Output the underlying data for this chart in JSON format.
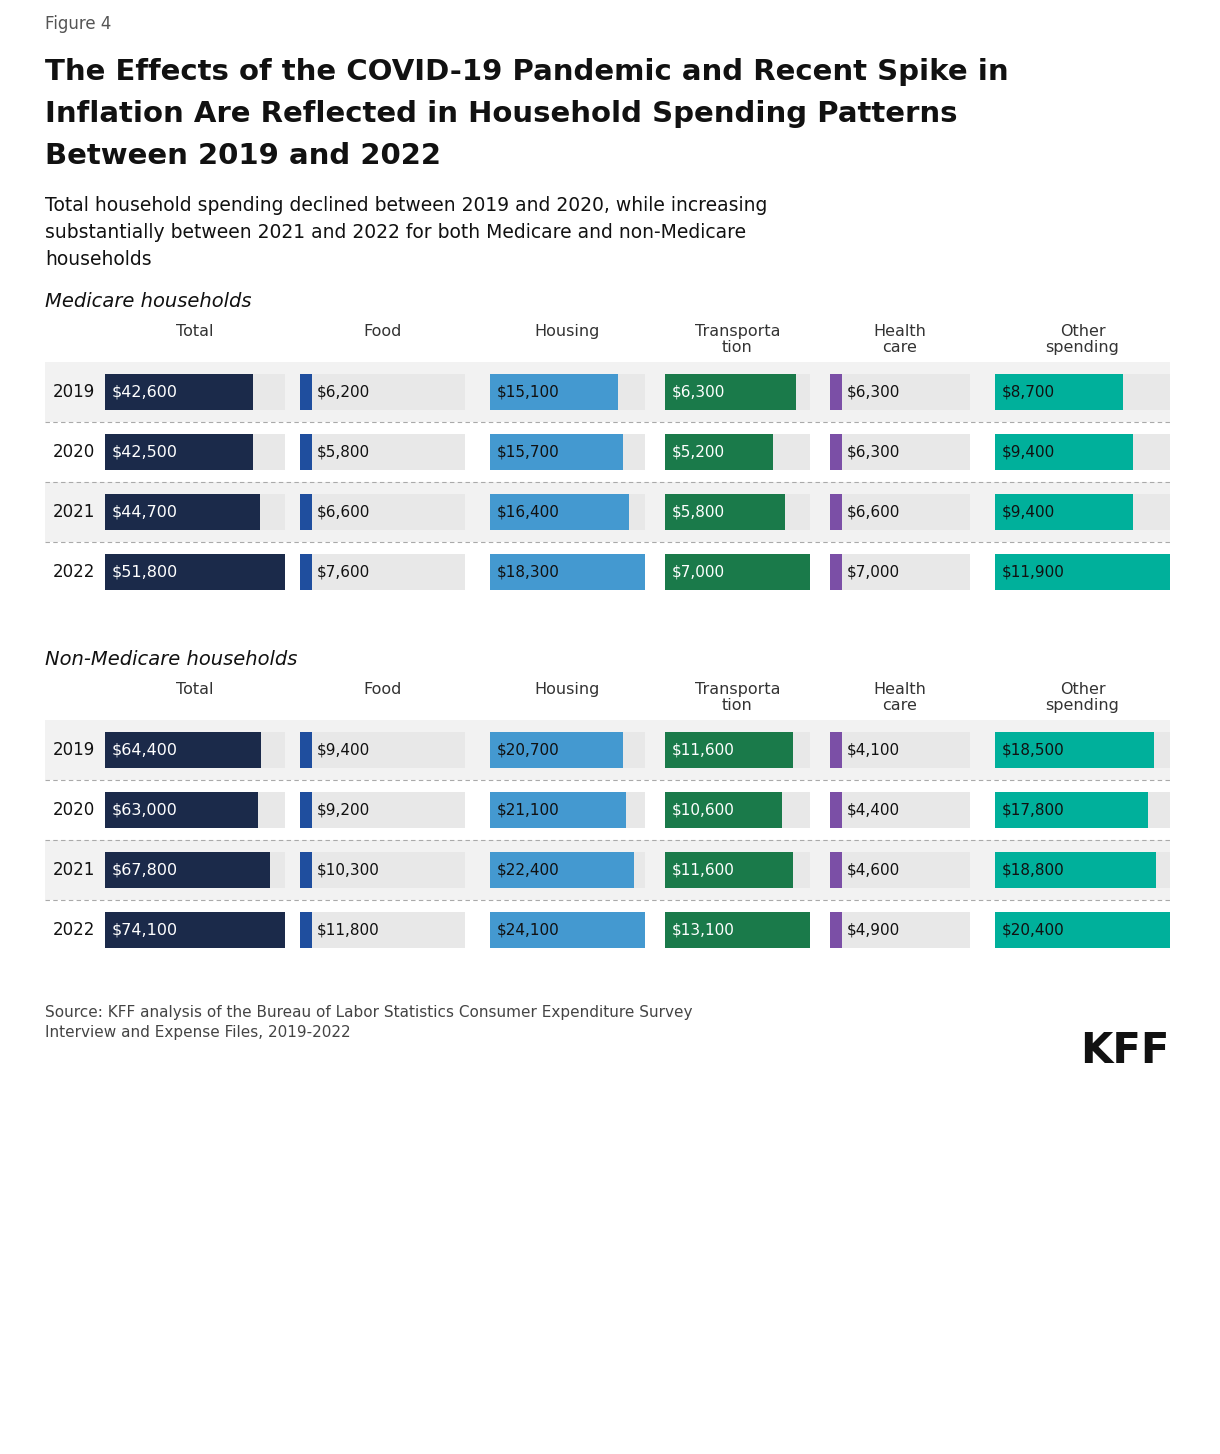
{
  "figure_label": "Figure 4",
  "title_line1": "The Effects of the COVID-19 Pandemic and Recent Spike in",
  "title_line2": "Inflation Are Reflected in Household Spending Patterns",
  "title_line3": "Between 2019 and 2022",
  "subtitle_line1": "Total household spending declined between 2019 and 2020, while increasing",
  "subtitle_line2": "substantially between 2021 and 2022 for both Medicare and non-Medicare",
  "subtitle_line3": "households",
  "source_line1": "Source: KFF analysis of the Bureau of Labor Statistics Consumer Expenditure Survey",
  "source_line2": "Interview and Expense Files, 2019-2022",
  "section1_title": "Medicare households",
  "section2_title": "Non-Medicare households",
  "col_headers_line1": [
    "Total",
    "Food",
    "Housing",
    "Transporta",
    "Health",
    "Other"
  ],
  "col_headers_line2": [
    "",
    "",
    "",
    "tion",
    "care",
    "spending"
  ],
  "years": [
    "2019",
    "2020",
    "2021",
    "2022"
  ],
  "medicare": {
    "total": [
      42600,
      42500,
      44700,
      51800
    ],
    "food": [
      6200,
      5800,
      6600,
      7600
    ],
    "housing": [
      15100,
      15700,
      16400,
      18300
    ],
    "transport": [
      6300,
      5200,
      5800,
      7000
    ],
    "health": [
      6300,
      6300,
      6600,
      7000
    ],
    "other": [
      8700,
      9400,
      9400,
      11900
    ]
  },
  "non_medicare": {
    "total": [
      64400,
      63000,
      67800,
      74100
    ],
    "food": [
      9400,
      9200,
      10300,
      11800
    ],
    "housing": [
      20700,
      21100,
      22400,
      24100
    ],
    "transport": [
      11600,
      10600,
      11600,
      13100
    ],
    "health": [
      4100,
      4400,
      4600,
      4900
    ],
    "other": [
      18500,
      17800,
      18800,
      20400
    ]
  },
  "colors": {
    "total_bg": "#1b2a4a",
    "total_text": "#ffffff",
    "food_bar": "#1f4e9e",
    "housing_bar": "#4499d0",
    "transport_bar": "#1a7a4a",
    "health_bar": "#7b4fa6",
    "other_bar": "#00b09b",
    "cell_bg": "#e8e8e8",
    "row_bg_odd": "#f2f2f2",
    "row_bg_even": "#ffffff"
  },
  "background_color": "#ffffff"
}
